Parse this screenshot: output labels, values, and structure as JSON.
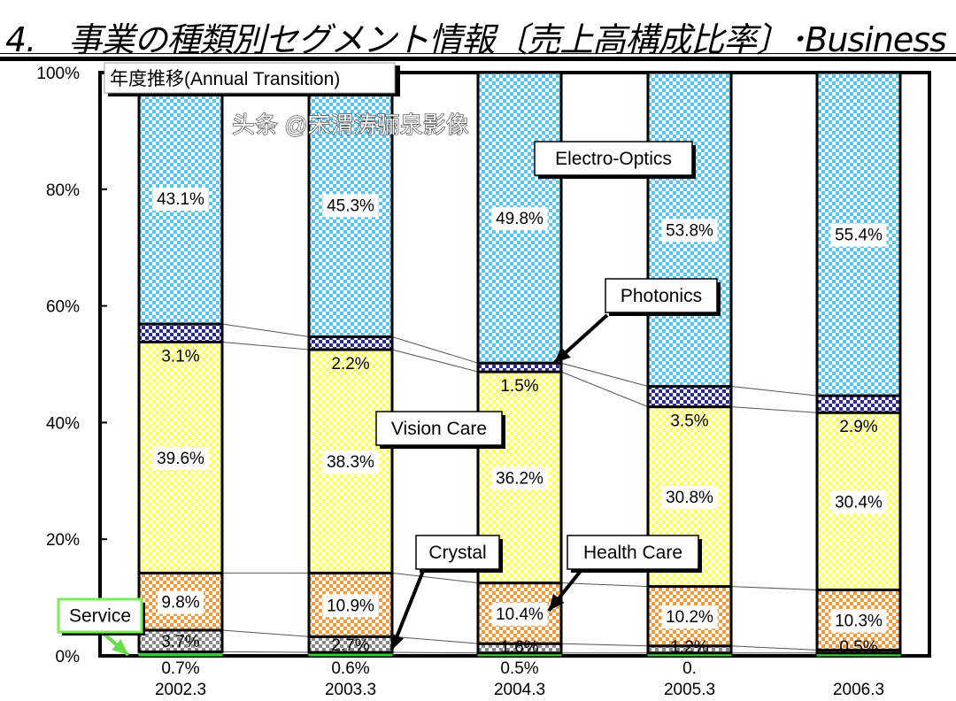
{
  "title": "4.　事業の種類別セグメント情報〔売上高構成比率〕･Business",
  "chart_data": {
    "type": "bar",
    "stacked": true,
    "title": "年度推移(Annual Transition)",
    "categories": [
      "2002.3",
      "2003.3",
      "2004.3",
      "2005.3",
      "2006.3"
    ],
    "ylim": [
      0,
      100
    ],
    "yticks": [
      "0%",
      "20%",
      "40%",
      "60%",
      "80%",
      "100%"
    ],
    "series": [
      {
        "name": "Service",
        "color": "#33cc33",
        "values": [
          0.7,
          0.6,
          0.5,
          0.5,
          0.5
        ],
        "labels": [
          "0.7%",
          "0.6%",
          "0.5%",
          "0.",
          ""
        ]
      },
      {
        "name": "Crystal",
        "color": "#888888",
        "values": [
          3.7,
          2.7,
          1.6,
          1.2,
          0.5
        ],
        "labels": [
          "3.7%",
          "2.7%",
          "1.6%",
          "1.2%",
          "0.5%"
        ]
      },
      {
        "name": "Health Care",
        "color": "#f09a3c",
        "values": [
          9.8,
          10.9,
          10.4,
          10.2,
          10.3
        ],
        "labels": [
          "9.8%",
          "10.9%",
          "10.4%",
          "10.2%",
          "10.3%"
        ]
      },
      {
        "name": "Vision Care",
        "color": "#ffff55",
        "values": [
          39.6,
          38.3,
          36.2,
          30.8,
          30.4
        ],
        "labels": [
          "39.6%",
          "38.3%",
          "36.2%",
          "30.8%",
          "30.4%"
        ]
      },
      {
        "name": "Photonics",
        "color": "#2a2a90",
        "values": [
          3.1,
          2.2,
          1.5,
          3.5,
          2.9
        ],
        "labels": [
          "3.1%",
          "2.2%",
          "1.5%",
          "3.5%",
          "2.9%"
        ]
      },
      {
        "name": "Electro-Optics",
        "color": "#55c4f0",
        "values": [
          43.1,
          45.3,
          49.8,
          53.8,
          55.4
        ],
        "labels": [
          "43.1%",
          "45.3%",
          "49.8%",
          "53.8%",
          "55.4%"
        ]
      }
    ],
    "callouts": {
      "electro": "Electro-Optics",
      "photonics": "Photonics",
      "vision": "Vision Care",
      "crystal": "Crystal",
      "health": "Health Care",
      "service": "Service"
    }
  },
  "watermark": "头条 @宋渭涛骊泉影像"
}
